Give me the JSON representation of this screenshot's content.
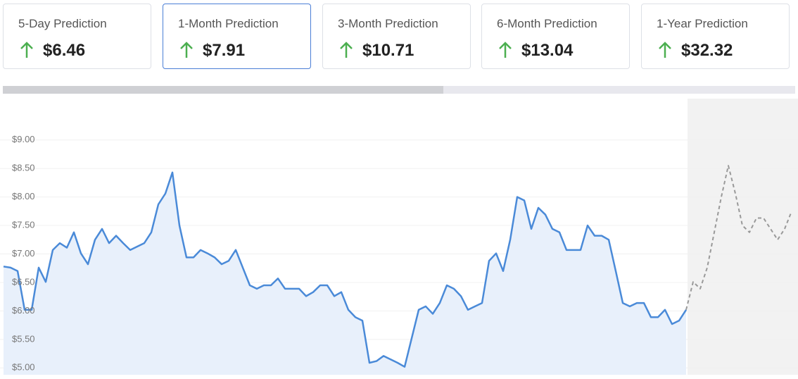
{
  "cards": [
    {
      "label": "5-Day Prediction",
      "value": "$6.46"
    },
    {
      "label": "1-Month Prediction",
      "value": "$7.91"
    },
    {
      "label": "3-Month Prediction",
      "value": "$10.71"
    },
    {
      "label": "6-Month Prediction",
      "value": "$13.04"
    },
    {
      "label": "1-Year Prediction",
      "value": "$32.32"
    }
  ],
  "selected_card": 1,
  "chart_data": {
    "type": "line",
    "ylim": [
      4.88,
      9.12
    ],
    "yticks": [
      {
        "value": 5,
        "label": "$5.00"
      },
      {
        "value": 5.5,
        "label": "$5.50"
      },
      {
        "value": 6,
        "label": "$6.00"
      },
      {
        "value": 6.5,
        "label": "$6.50"
      },
      {
        "value": 7,
        "label": "$7.00"
      },
      {
        "value": 7.5,
        "label": "$7.50"
      },
      {
        "value": 8,
        "label": "$8.00"
      },
      {
        "value": 8.5,
        "label": "$8.50"
      },
      {
        "value": 9,
        "label": "$9.00"
      }
    ],
    "grid": true,
    "series": [
      {
        "color": "#4a8ad8",
        "area": true,
        "dashed": false,
        "values": [
          6.78,
          6.76,
          6.7,
          6.02,
          6.02,
          6.76,
          6.51,
          7.07,
          7.19,
          7.11,
          7.38,
          7.01,
          6.82,
          7.25,
          7.44,
          7.19,
          7.32,
          7.19,
          7.07,
          7.13,
          7.19,
          7.38,
          7.87,
          8.06,
          8.43,
          7.5,
          6.94,
          6.94,
          7.07,
          7.01,
          6.94,
          6.82,
          6.88,
          7.07,
          6.76,
          6.45,
          6.39,
          6.45,
          6.45,
          6.57,
          6.39,
          6.39,
          6.39,
          6.26,
          6.33,
          6.45,
          6.45,
          6.26,
          6.33,
          6.02,
          5.89,
          5.83,
          5.09,
          5.12,
          5.21,
          5.15,
          5.09,
          5.02,
          5.52,
          6.02,
          6.08,
          5.95,
          6.14,
          6.45,
          6.39,
          6.26,
          6.02,
          6.08,
          6.14,
          6.88,
          7.01,
          6.7,
          7.25,
          8.0,
          7.94,
          7.44,
          7.81,
          7.69,
          7.44,
          7.38,
          7.07,
          7.07,
          7.07,
          7.5,
          7.32,
          7.32,
          7.25,
          6.7,
          6.14,
          6.08,
          6.14,
          6.14,
          5.89,
          5.89,
          6.02,
          5.77,
          5.83,
          6.02,
          null,
          null,
          null,
          null,
          null,
          null,
          null,
          null,
          null,
          null,
          null,
          null,
          null,
          null,
          null
        ]
      },
      {
        "color": "#999999",
        "area": false,
        "dashed": true,
        "values": [
          null,
          null,
          null,
          null,
          null,
          null,
          null,
          null,
          null,
          null,
          null,
          null,
          null,
          null,
          null,
          null,
          null,
          null,
          null,
          null,
          null,
          null,
          null,
          null,
          null,
          null,
          null,
          null,
          null,
          null,
          null,
          null,
          null,
          null,
          null,
          null,
          null,
          null,
          null,
          null,
          null,
          null,
          null,
          null,
          null,
          null,
          null,
          null,
          null,
          null,
          null,
          null,
          null,
          null,
          null,
          null,
          null,
          null,
          null,
          null,
          null,
          null,
          null,
          null,
          null,
          null,
          null,
          null,
          null,
          null,
          null,
          null,
          null,
          null,
          null,
          null,
          null,
          null,
          null,
          null,
          null,
          null,
          null,
          null,
          null,
          null,
          null,
          null,
          null,
          null,
          null,
          null,
          null,
          null,
          null,
          null,
          null,
          6.02,
          6.51,
          6.39,
          6.76,
          7.38,
          8.0,
          8.55,
          8.06,
          7.5,
          7.38,
          7.63,
          7.63,
          7.44,
          7.25,
          7.44,
          7.75
        ]
      }
    ]
  }
}
